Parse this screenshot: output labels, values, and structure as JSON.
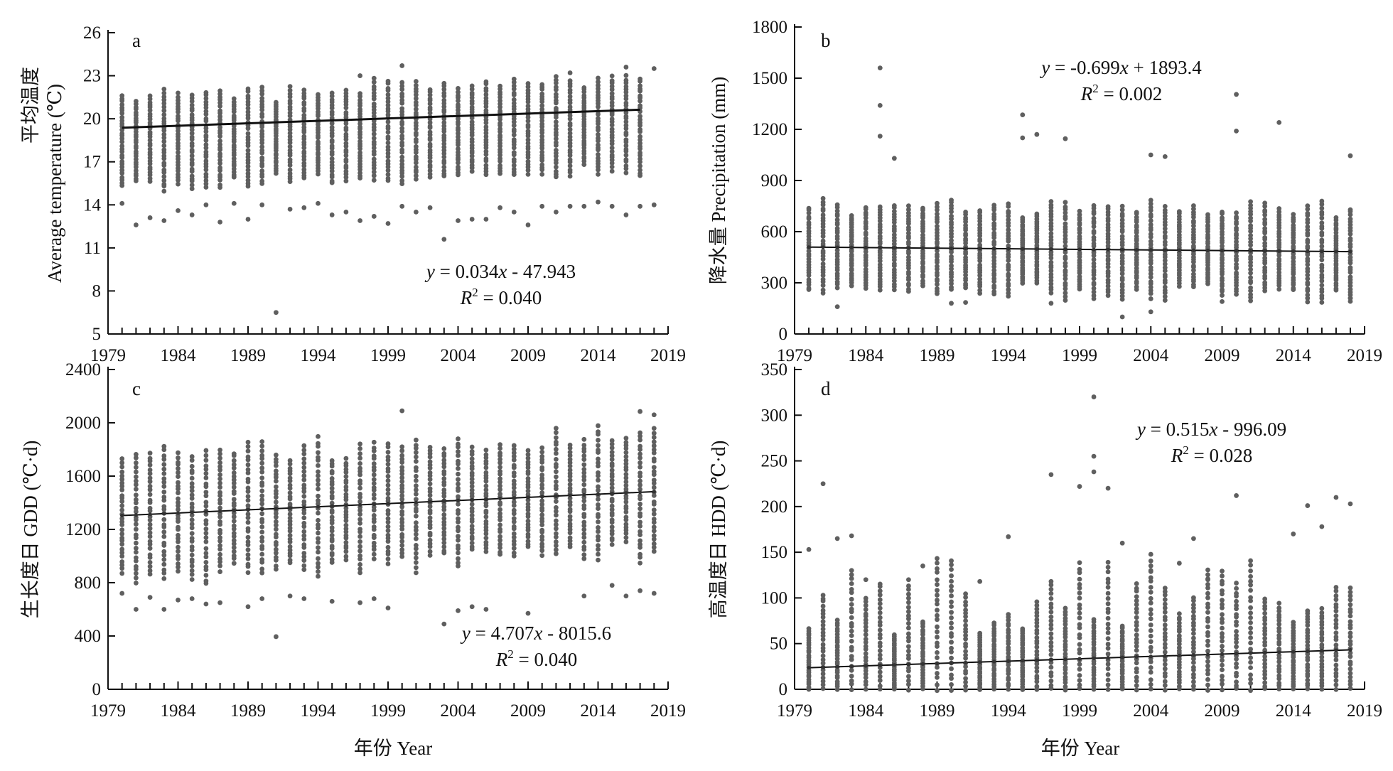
{
  "x_axis_label": "年份 Year",
  "x_ticks": [
    1979,
    1984,
    1989,
    1994,
    1999,
    2004,
    2009,
    2014,
    2019
  ],
  "colors": {
    "points": "#5f5f5f",
    "trend": "#111111",
    "axis": "#111111"
  },
  "chart_data": [
    {
      "type": "scatter",
      "panel": "a",
      "ylabel_cn": "平均温度",
      "ylabel_en": "Average temperature (℃)",
      "ylim": [
        5,
        26
      ],
      "yticks": [
        5,
        8,
        11,
        14,
        17,
        20,
        23,
        26
      ],
      "xlim": [
        1979,
        2019
      ],
      "years": [
        1980,
        2017
      ],
      "trend": {
        "slope": 0.034,
        "intercept": -47.943
      },
      "equation": "y = 0.034x - 47.943",
      "r2": "R2 = 0.040",
      "per_year": {
        "mean_start": 18.4,
        "mean_end": 19.6,
        "half_spread": 2.6
      },
      "outliers": [
        [
          1980,
          14.1
        ],
        [
          1981,
          12.6
        ],
        [
          1982,
          13.1
        ],
        [
          1983,
          12.9
        ],
        [
          1984,
          13.6
        ],
        [
          1985,
          13.3
        ],
        [
          1986,
          14.0
        ],
        [
          1987,
          12.8
        ],
        [
          1988,
          14.1
        ],
        [
          1989,
          13.0
        ],
        [
          1990,
          14.0
        ],
        [
          1991,
          6.5
        ],
        [
          1992,
          13.7
        ],
        [
          1993,
          13.8
        ],
        [
          1994,
          14.1
        ],
        [
          1995,
          13.3
        ],
        [
          1996,
          13.5
        ],
        [
          1997,
          12.9
        ],
        [
          1998,
          13.2
        ],
        [
          1999,
          12.7
        ],
        [
          2000,
          13.9
        ],
        [
          2001,
          13.5
        ],
        [
          2002,
          13.8
        ],
        [
          2003,
          11.6
        ],
        [
          2004,
          12.9
        ],
        [
          2005,
          13.0
        ],
        [
          2006,
          13.0
        ],
        [
          2007,
          13.8
        ],
        [
          2008,
          13.5
        ],
        [
          2009,
          12.6
        ],
        [
          2010,
          13.9
        ],
        [
          2011,
          13.5
        ],
        [
          2012,
          13.9
        ],
        [
          2013,
          13.9
        ],
        [
          2014,
          14.2
        ],
        [
          2015,
          13.9
        ],
        [
          2016,
          13.3
        ],
        [
          2017,
          13.9
        ],
        [
          2018,
          14.0
        ],
        [
          2000,
          23.7
        ],
        [
          1997,
          23.0
        ],
        [
          2016,
          23.6
        ],
        [
          2018,
          23.5
        ],
        [
          2012,
          23.2
        ]
      ]
    },
    {
      "type": "scatter",
      "panel": "b",
      "ylabel_cn": "降水量",
      "ylabel_en": "Precipitation (mm)",
      "ylim": [
        0,
        1800
      ],
      "yticks": [
        0,
        300,
        600,
        900,
        1200,
        1500,
        1800
      ],
      "xlim": [
        1979,
        2019
      ],
      "years": [
        1980,
        2018
      ],
      "trend": {
        "slope": -0.699,
        "intercept": 1893.4
      },
      "equation": "y = -0.699x + 1893.4",
      "r2": "R2 = 0.002",
      "per_year": {
        "mean_start": 510,
        "mean_end": 485,
        "half_spread": 210
      },
      "outliers": [
        [
          1985,
          1560
        ],
        [
          1985,
          1340
        ],
        [
          1995,
          1285
        ],
        [
          1996,
          1170
        ],
        [
          1998,
          1145
        ],
        [
          2010,
          1405
        ],
        [
          2010,
          1190
        ],
        [
          2013,
          1240
        ],
        [
          2004,
          1050
        ],
        [
          2005,
          1040
        ],
        [
          2018,
          1045
        ],
        [
          1985,
          1160
        ],
        [
          1986,
          1030
        ],
        [
          1995,
          1150
        ],
        [
          2002,
          100
        ],
        [
          2004,
          130
        ],
        [
          1982,
          160
        ],
        [
          1997,
          180
        ],
        [
          2009,
          190
        ],
        [
          2018,
          210
        ],
        [
          1990,
          180
        ],
        [
          1991,
          185
        ]
      ]
    },
    {
      "type": "scatter",
      "panel": "c",
      "ylabel_cn": "生长度日",
      "ylabel_en": "GDD (℃·d)",
      "ylim": [
        0,
        2400
      ],
      "yticks": [
        0,
        400,
        800,
        1200,
        1600,
        2000,
        2400
      ],
      "xlim": [
        1979,
        2019
      ],
      "years": [
        1980,
        2018
      ],
      "trend": {
        "slope": 4.707,
        "intercept": -8015.6
      },
      "equation": "y = 4.707x - 8015.6",
      "r2": "R2 = 0.040",
      "per_year": {
        "mean_start": 1305,
        "mean_end": 1480,
        "half_spread": 390
      },
      "outliers": [
        [
          1980,
          720
        ],
        [
          1981,
          600
        ],
        [
          1982,
          690
        ],
        [
          1983,
          600
        ],
        [
          1984,
          670
        ],
        [
          1985,
          680
        ],
        [
          1986,
          640
        ],
        [
          1987,
          650
        ],
        [
          1989,
          620
        ],
        [
          1990,
          680
        ],
        [
          1991,
          395
        ],
        [
          1992,
          700
        ],
        [
          1993,
          680
        ],
        [
          1995,
          660
        ],
        [
          1997,
          650
        ],
        [
          1998,
          680
        ],
        [
          1999,
          610
        ],
        [
          2003,
          490
        ],
        [
          2004,
          590
        ],
        [
          2005,
          620
        ],
        [
          2006,
          600
        ],
        [
          2009,
          570
        ],
        [
          2013,
          700
        ],
        [
          2015,
          780
        ],
        [
          2016,
          700
        ],
        [
          2017,
          740
        ],
        [
          2018,
          720
        ],
        [
          2000,
          2090
        ],
        [
          2017,
          2085
        ],
        [
          2018,
          2060
        ]
      ]
    },
    {
      "type": "scatter",
      "panel": "d",
      "ylabel_cn": "高温度日",
      "ylabel_en": "HDD (℃·d)",
      "ylim": [
        0,
        350
      ],
      "yticks": [
        0,
        50,
        100,
        150,
        200,
        250,
        300,
        350
      ],
      "xlim": [
        1979,
        2019
      ],
      "years": [
        1980,
        2018
      ],
      "trend": {
        "slope": 0.515,
        "intercept": -996.09
      },
      "equation": "y = 0.515x - 996.09",
      "r2": "R2 = 0.028",
      "per_year": {
        "mean_start": 25,
        "mean_end": 44,
        "half_spread": 0
      },
      "outliers": [
        [
          2000,
          320
        ],
        [
          2000,
          255
        ],
        [
          2000,
          238
        ],
        [
          2001,
          220
        ],
        [
          1999,
          222
        ],
        [
          1997,
          235
        ],
        [
          1981,
          225
        ],
        [
          2010,
          212
        ],
        [
          2017,
          210
        ],
        [
          2018,
          203
        ],
        [
          2015,
          201
        ],
        [
          1983,
          168
        ],
        [
          1994,
          167
        ],
        [
          1980,
          153
        ],
        [
          2002,
          160
        ],
        [
          2014,
          170
        ],
        [
          2016,
          178
        ],
        [
          2007,
          165
        ],
        [
          1982,
          165
        ],
        [
          1984,
          120
        ],
        [
          1988,
          135
        ],
        [
          1992,
          118
        ],
        [
          2004,
          130
        ],
        [
          2006,
          138
        ],
        [
          2008,
          120
        ]
      ]
    }
  ]
}
